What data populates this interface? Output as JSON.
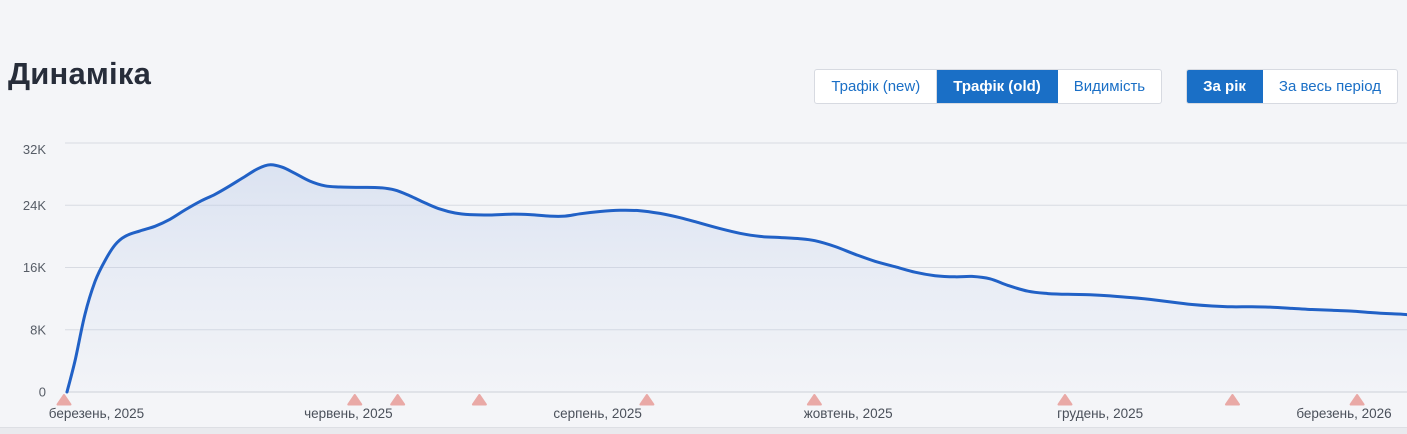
{
  "header": {
    "title": "Динаміка"
  },
  "toolbar": {
    "metric_tabs": [
      {
        "label": "Трафік (new)",
        "active": false
      },
      {
        "label": "Трафік (old)",
        "active": true
      },
      {
        "label": "Видимість",
        "active": false
      }
    ],
    "period_tabs": [
      {
        "label": "За рік",
        "active": true
      },
      {
        "label": "За весь період",
        "active": false
      }
    ]
  },
  "colors": {
    "accent_blue": "#1a6fc6",
    "line_blue": "#2161c6",
    "area_fill": "#b7c8e8",
    "marker_pink": "#e9a9a6",
    "grid": "#d8dbe2",
    "axis_zero_line": "#cdd1d9",
    "y_tick_text": "#565c66",
    "x_tick_text": "#4a505a",
    "title_text": "#272d3a",
    "background": "#f4f5f8",
    "panel_edge": "#e9eaee"
  },
  "chart_data": {
    "type": "area",
    "title": "Динаміка",
    "grid": true,
    "legend": false,
    "y_axis": {
      "max": 32000,
      "ticks": [
        {
          "label": "0",
          "value": 0
        },
        {
          "label": "8K",
          "value": 8000
        },
        {
          "label": "16K",
          "value": 16000
        },
        {
          "label": "24K",
          "value": 24000
        },
        {
          "label": "32K",
          "value": 32000
        }
      ]
    },
    "x_axis": {
      "ticks": [
        {
          "label": "березень, 2025",
          "t": 0.022
        },
        {
          "label": "червень, 2025",
          "t": 0.21
        },
        {
          "label": "серпень, 2025",
          "t": 0.396
        },
        {
          "label": "жовтень, 2025",
          "t": 0.583
        },
        {
          "label": "грудень, 2025",
          "t": 0.771
        },
        {
          "label": "березень, 2026",
          "t": 0.953
        }
      ]
    },
    "event_markers": {
      "t": [
        0,
        0.217,
        0.249,
        0.31,
        0.435,
        0.56,
        0.747,
        0.872,
        0.965
      ]
    },
    "series": [
      {
        "name": "Трафік (old)",
        "points": [
          [
            0.0,
            0
          ],
          [
            0.006,
            4000
          ],
          [
            0.0134,
            10000
          ],
          [
            0.0209,
            14200
          ],
          [
            0.0284,
            16900
          ],
          [
            0.0358,
            18900
          ],
          [
            0.0433,
            20000
          ],
          [
            0.0545,
            20700
          ],
          [
            0.0657,
            21300
          ],
          [
            0.0769,
            22200
          ],
          [
            0.0881,
            23400
          ],
          [
            0.0993,
            24500
          ],
          [
            0.1104,
            25400
          ],
          [
            0.1216,
            26500
          ],
          [
            0.1328,
            27700
          ],
          [
            0.1425,
            28700
          ],
          [
            0.1515,
            29200
          ],
          [
            0.1604,
            28900
          ],
          [
            0.1701,
            28100
          ],
          [
            0.1813,
            27100
          ],
          [
            0.1925,
            26500
          ],
          [
            0.2037,
            26350
          ],
          [
            0.2187,
            26300
          ],
          [
            0.2336,
            26250
          ],
          [
            0.2448,
            25950
          ],
          [
            0.256,
            25200
          ],
          [
            0.2672,
            24300
          ],
          [
            0.2784,
            23500
          ],
          [
            0.2896,
            23000
          ],
          [
            0.3007,
            22800
          ],
          [
            0.3157,
            22750
          ],
          [
            0.3306,
            22850
          ],
          [
            0.3455,
            22800
          ],
          [
            0.3604,
            22600
          ],
          [
            0.3716,
            22600
          ],
          [
            0.3828,
            22900
          ],
          [
            0.3978,
            23200
          ],
          [
            0.4127,
            23350
          ],
          [
            0.4276,
            23300
          ],
          [
            0.4425,
            22950
          ],
          [
            0.4575,
            22400
          ],
          [
            0.4724,
            21700
          ],
          [
            0.4873,
            21000
          ],
          [
            0.5022,
            20400
          ],
          [
            0.5172,
            20000
          ],
          [
            0.5321,
            19850
          ],
          [
            0.547,
            19700
          ],
          [
            0.5582,
            19450
          ],
          [
            0.5731,
            18700
          ],
          [
            0.5881,
            17700
          ],
          [
            0.603,
            16800
          ],
          [
            0.6179,
            16100
          ],
          [
            0.6328,
            15400
          ],
          [
            0.6478,
            14950
          ],
          [
            0.6627,
            14800
          ],
          [
            0.6754,
            14850
          ],
          [
            0.6888,
            14550
          ],
          [
            0.7022,
            13700
          ],
          [
            0.7172,
            12950
          ],
          [
            0.7321,
            12650
          ],
          [
            0.747,
            12550
          ],
          [
            0.7634,
            12500
          ],
          [
            0.7784,
            12350
          ],
          [
            0.7933,
            12150
          ],
          [
            0.8082,
            11900
          ],
          [
            0.8246,
            11550
          ],
          [
            0.8396,
            11250
          ],
          [
            0.8545,
            11050
          ],
          [
            0.8694,
            10950
          ],
          [
            0.8843,
            10950
          ],
          [
            0.8993,
            10900
          ],
          [
            0.9142,
            10750
          ],
          [
            0.9291,
            10600
          ],
          [
            0.944,
            10500
          ],
          [
            0.959,
            10400
          ],
          [
            0.9739,
            10200
          ],
          [
            0.9888,
            10050
          ],
          [
            1.0,
            9950
          ]
        ]
      }
    ]
  }
}
